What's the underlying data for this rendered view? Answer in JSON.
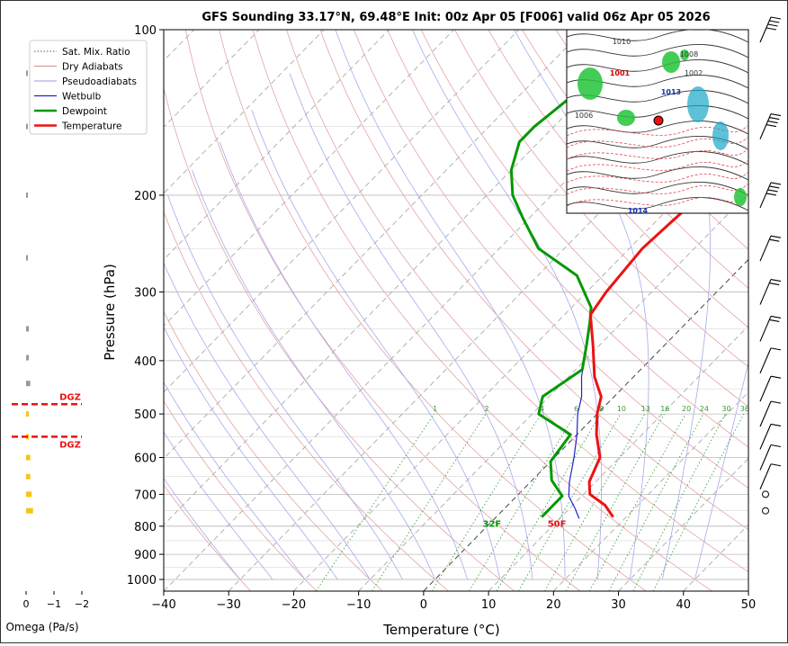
{
  "chart_data": {
    "type": "line",
    "subtype": "skew-T log-P sounding",
    "title": "GFS Sounding 33.17°N, 69.48°E Init: 00z Apr 05 [F006] valid 06z Apr 05 2026",
    "xlabel": "Temperature (°C)",
    "ylabel": "Pressure (hPa)",
    "xlim": [
      -40,
      50
    ],
    "ylim": [
      1050,
      100
    ],
    "y_scale": "log",
    "x_ticks": [
      "−40",
      "−30",
      "−20",
      "−10",
      "0",
      "10",
      "20",
      "30",
      "40",
      "50"
    ],
    "y_ticks": [
      "100",
      "200",
      "300",
      "400",
      "500",
      "600",
      "700",
      "800",
      "900",
      "1000"
    ],
    "grid": true,
    "legend_position": "top-left",
    "legend": [
      {
        "label": "Sat. Mix. Ratio",
        "color": "#555555",
        "style": "dotted"
      },
      {
        "label": "Dry Adiabats",
        "color": "#d98a8a",
        "style": "solid-thin"
      },
      {
        "label": "Pseudoadiabats",
        "color": "#9a9ae6",
        "style": "solid-thin"
      },
      {
        "label": "Wetbulb",
        "color": "#2222cc",
        "style": "solid"
      },
      {
        "label": "Dewpoint",
        "color": "#009900",
        "style": "solid-thick"
      },
      {
        "label": "Temperature",
        "color": "#ee1111",
        "style": "solid-thick"
      }
    ],
    "series": [
      {
        "name": "Temperature",
        "color": "#ee1111",
        "points": [
          [
            18,
            770
          ],
          [
            15,
            733
          ],
          [
            11,
            700
          ],
          [
            9,
            664
          ],
          [
            7,
            600
          ],
          [
            3,
            545
          ],
          [
            0,
            500
          ],
          [
            -2,
            465
          ],
          [
            -6,
            428
          ],
          [
            -11,
            375
          ],
          [
            -16,
            330
          ],
          [
            -17,
            300
          ],
          [
            -18,
            250
          ],
          [
            -17.5,
            222
          ],
          [
            -17,
            200
          ],
          [
            -17,
            180
          ],
          [
            -17,
            160
          ],
          [
            -17,
            150
          ],
          [
            -19,
            122
          ],
          [
            -21,
            105
          ],
          [
            -22,
            100
          ]
        ]
      },
      {
        "name": "Dewpoint",
        "color": "#009900",
        "points": [
          [
            7,
            770
          ],
          [
            7,
            745
          ],
          [
            7,
            705
          ],
          [
            3,
            660
          ],
          [
            0,
            610
          ],
          [
            -1,
            545
          ],
          [
            -9,
            500
          ],
          [
            -11,
            465
          ],
          [
            -9,
            415
          ],
          [
            -12,
            375
          ],
          [
            -15,
            340
          ],
          [
            -17,
            320
          ],
          [
            -24,
            280
          ],
          [
            -34,
            250
          ],
          [
            -41,
            220
          ],
          [
            -46,
            200
          ],
          [
            -50,
            180
          ],
          [
            -53,
            160
          ],
          [
            -53,
            150
          ],
          [
            -52,
            135
          ],
          [
            -50,
            115
          ],
          [
            -48,
            100
          ]
        ]
      },
      {
        "name": "Wetbulb",
        "color": "#2222cc",
        "points": [
          [
            13,
            775
          ],
          [
            11,
            745
          ],
          [
            8,
            705
          ],
          [
            6,
            665
          ],
          [
            3,
            600
          ],
          [
            0,
            545
          ],
          [
            -3,
            500
          ],
          [
            -5,
            465
          ],
          [
            -8,
            428
          ],
          [
            -12,
            375
          ],
          [
            -16,
            330
          ],
          [
            -17,
            300
          ],
          [
            -18,
            250
          ],
          [
            -17.5,
            222
          ],
          [
            -17,
            200
          ],
          [
            -17,
            180
          ],
          [
            -17,
            160
          ],
          [
            -17,
            150
          ],
          [
            -19,
            122
          ],
          [
            -21,
            105
          ],
          [
            -22,
            100
          ]
        ]
      }
    ],
    "mixing_ratio_labels": [
      "1",
      "2",
      "4",
      "6",
      "8",
      "10",
      "13",
      "16",
      "20",
      "24",
      "30",
      "36"
    ],
    "isotherm_labels": [
      {
        "text": "32F",
        "color": "#009900"
      },
      {
        "text": "50F",
        "color": "#ee1111"
      }
    ],
    "omega_panel": {
      "xlabel": "Omega (Pa/s)",
      "x_ticks": [
        "0",
        "−1",
        "−2"
      ],
      "dgz_label": "DGZ",
      "dgz_color": "#ee1111",
      "dgz_bounds_hPa": [
        480,
        550
      ],
      "bars": [
        {
          "p": 120,
          "value": -0.05
        },
        {
          "p": 150,
          "value": -0.05
        },
        {
          "p": 200,
          "value": -0.05
        },
        {
          "p": 260,
          "value": -0.05
        },
        {
          "p": 350,
          "value": -0.1
        },
        {
          "p": 395,
          "value": -0.1
        },
        {
          "p": 440,
          "value": -0.15
        },
        {
          "p": 500,
          "value": -0.1
        },
        {
          "p": 550,
          "value": -0.1
        },
        {
          "p": 600,
          "value": -0.15
        },
        {
          "p": 650,
          "value": -0.15
        },
        {
          "p": 700,
          "value": -0.2
        },
        {
          "p": 750,
          "value": -0.25
        }
      ]
    },
    "wind_barbs_hPa": [
      100,
      150,
      200,
      250,
      300,
      350,
      400,
      450,
      500,
      550,
      600,
      650,
      700,
      750
    ]
  },
  "inset_map": {
    "pressure_labels": [
      "1001",
      "1014",
      "1013",
      "1008",
      "1010",
      "1006",
      "1002"
    ],
    "marker_color": "#ee1111"
  }
}
